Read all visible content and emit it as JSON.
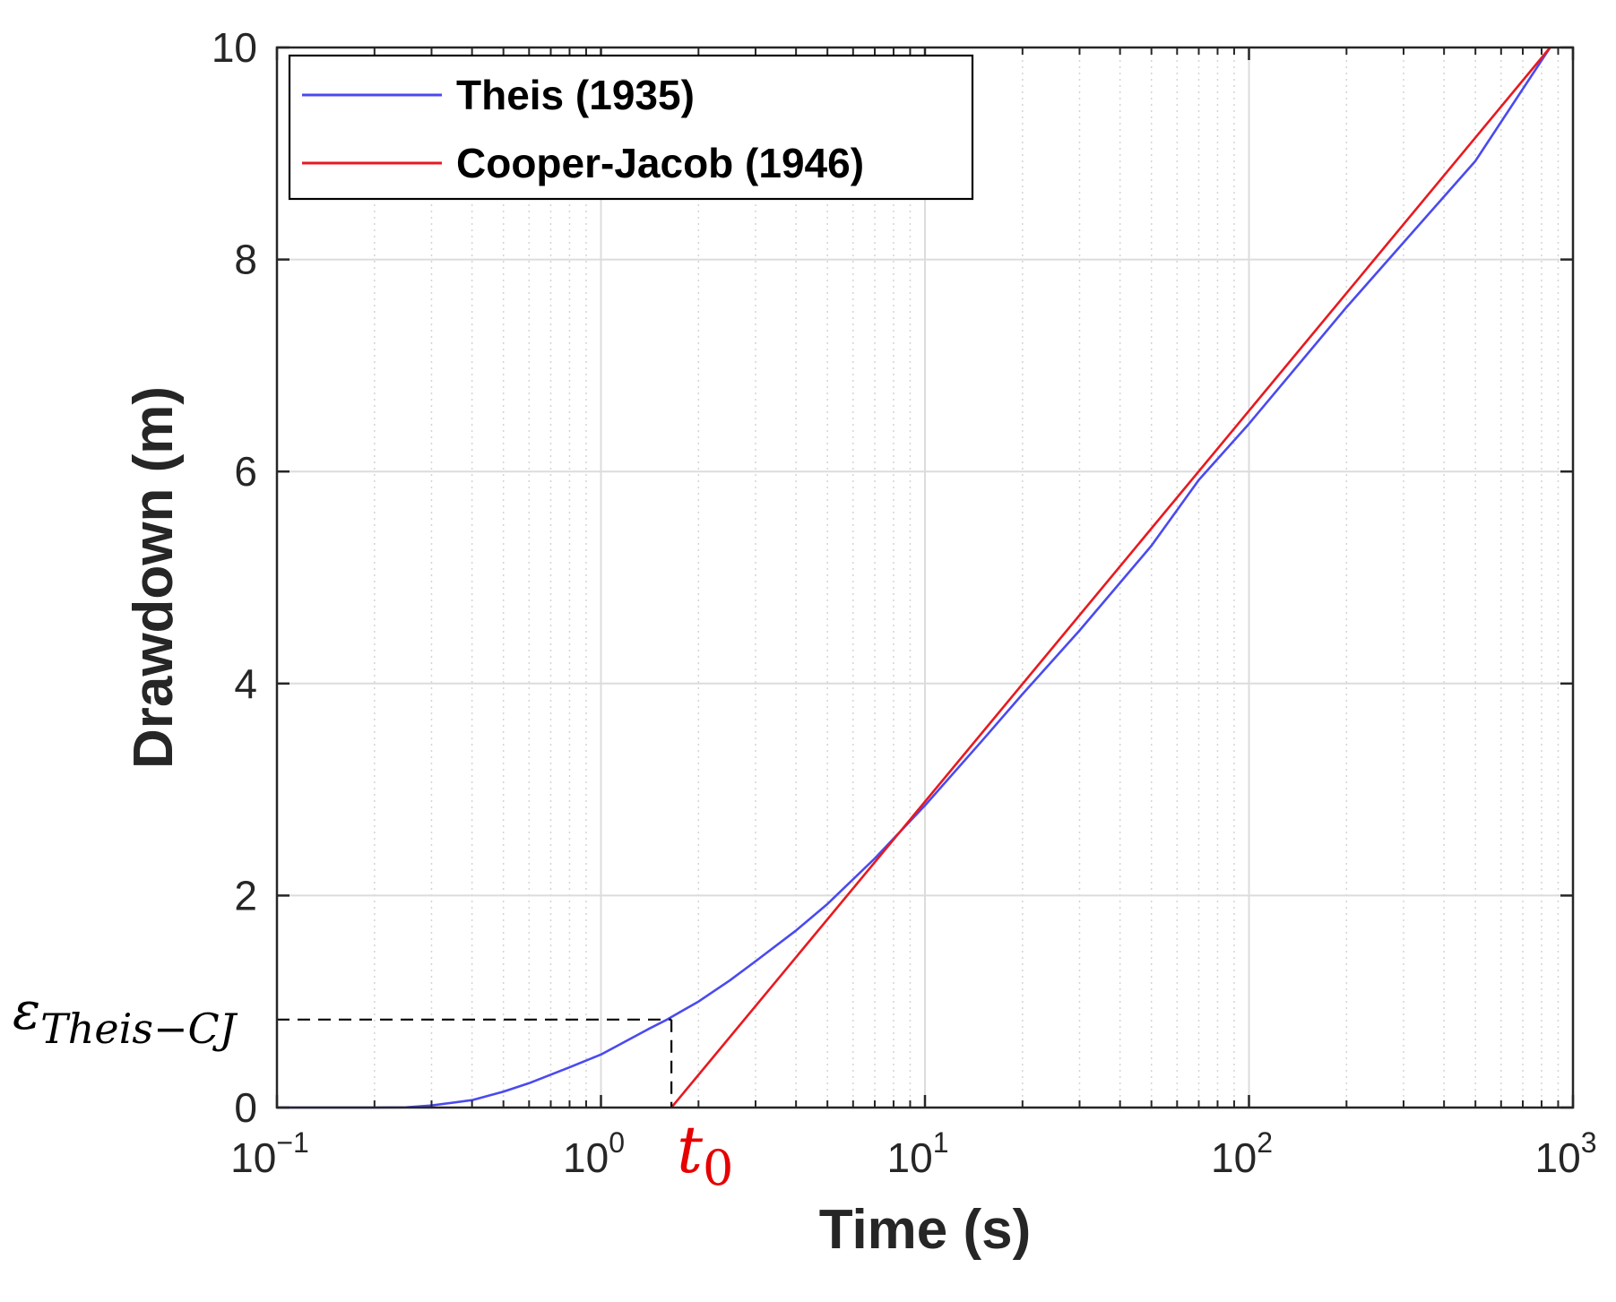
{
  "chart_data": {
    "type": "line",
    "xscale": "log",
    "xlim": [
      0.1,
      1000
    ],
    "ylim": [
      0,
      10
    ],
    "xlabel": "Time (s)",
    "ylabel": "Drawdown (m)",
    "grid": true,
    "legend_position": "top-left",
    "x_ticks": [
      {
        "value": 0.1,
        "base": "10",
        "exp": "−1"
      },
      {
        "value": 1,
        "base": "10",
        "exp": "0"
      },
      {
        "value": 10,
        "base": "10",
        "exp": "1"
      },
      {
        "value": 100,
        "base": "10",
        "exp": "2"
      },
      {
        "value": 1000,
        "base": "10",
        "exp": "3"
      }
    ],
    "y_ticks": [
      {
        "value": 0,
        "label": "0"
      },
      {
        "value": 2,
        "label": "2"
      },
      {
        "value": 4,
        "label": "4"
      },
      {
        "value": 6,
        "label": "6"
      },
      {
        "value": 8,
        "label": "8"
      },
      {
        "value": 10,
        "label": "10"
      }
    ],
    "series": [
      {
        "name": "Theis (1935)",
        "color": "#4a4af0",
        "x": [
          0.1,
          0.15,
          0.2,
          0.25,
          0.3,
          0.4,
          0.5,
          0.6,
          0.7,
          0.8,
          1.0,
          1.2,
          1.4,
          1.6,
          1.8,
          2.0,
          2.5,
          3.0,
          4.0,
          5.0,
          7.0,
          10.0,
          15.0,
          20.0,
          30.0,
          50.0,
          70.0,
          100.0,
          200.0,
          500.0,
          850.0
        ],
        "y": [
          0.0,
          0.0,
          0.0,
          0.002,
          0.02,
          0.07,
          0.15,
          0.23,
          0.31,
          0.38,
          0.5,
          0.63,
          0.74,
          0.83,
          0.92,
          1.0,
          1.2,
          1.38,
          1.67,
          1.92,
          2.35,
          2.85,
          3.46,
          3.9,
          4.5,
          5.3,
          5.92,
          6.45,
          7.55,
          8.93,
          10.0
        ]
      },
      {
        "name": "Cooper-Jacob (1946)",
        "color": "#e8191e",
        "x": [
          1.65,
          850
        ],
        "y": [
          0.0,
          10.0
        ]
      }
    ],
    "annotations": {
      "epsilon_label": {
        "symbol": "ε",
        "subscript": "Theis−CJ",
        "y": 0.83
      },
      "t0_label": {
        "symbol": "t",
        "subscript": "0",
        "x": 1.65
      }
    }
  },
  "colors": {
    "theis": "#4a4af0",
    "cooper_jacob": "#e8191e",
    "t0_annotation": "#e60000",
    "axis": "#262626",
    "grid": "#dcdcdc"
  }
}
